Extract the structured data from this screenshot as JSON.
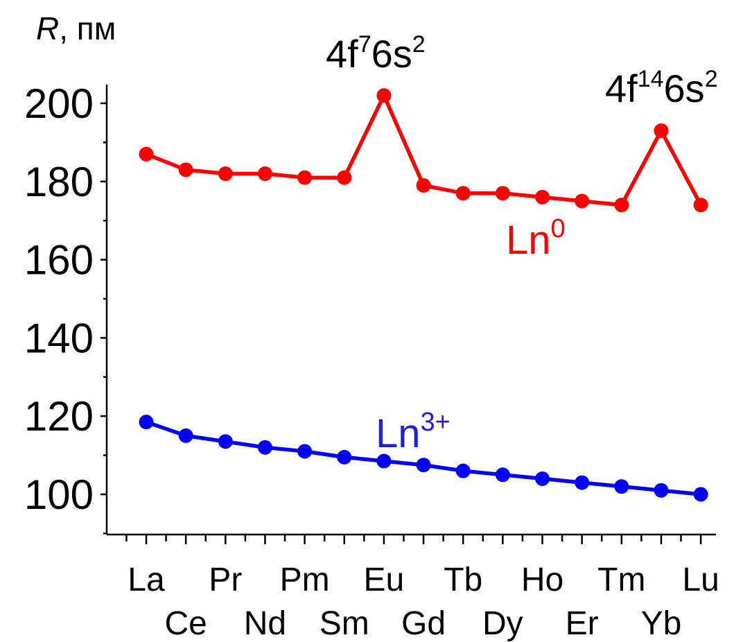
{
  "chart_data": {
    "type": "line",
    "ylabel_symbol": "R",
    "ylabel_unit": ", пм",
    "ylim": [
      90,
      210
    ],
    "yticks": [
      100,
      120,
      140,
      160,
      180,
      200
    ],
    "categories": [
      "La",
      "Ce",
      "Pr",
      "Nd",
      "Pm",
      "Sm",
      "Eu",
      "Gd",
      "Tb",
      "Dy",
      "Ho",
      "Er",
      "Tm",
      "Yb",
      "Lu"
    ],
    "series": [
      {
        "name": "Ln0",
        "label_base": "Ln",
        "label_sup": "0",
        "color": "#ff0000",
        "values": [
          187,
          183,
          182,
          182,
          181,
          181,
          202,
          179,
          177,
          177,
          176,
          175,
          174,
          193,
          174
        ]
      },
      {
        "name": "Ln3+",
        "label_base": "Ln",
        "label_sup": "3+",
        "color": "#0000ff",
        "values": [
          118.5,
          115,
          113.5,
          112,
          111,
          109.5,
          108.5,
          107.5,
          106,
          105,
          104,
          103,
          102,
          101,
          100
        ]
      }
    ],
    "annotations": [
      {
        "parts": [
          "4f",
          "7",
          "6s",
          "2"
        ]
      },
      {
        "parts": [
          "4f",
          "14",
          "6s",
          "2"
        ]
      }
    ],
    "grid": false,
    "legend": "inline labels"
  },
  "colors": {
    "axis": "#000000"
  }
}
